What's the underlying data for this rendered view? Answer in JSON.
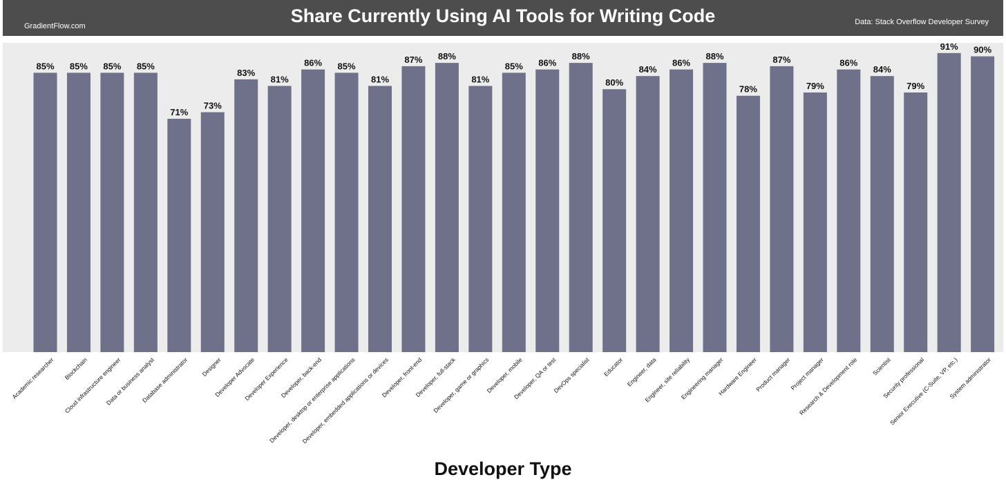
{
  "header": {
    "title": "Share Currently Using AI Tools for Writing Code",
    "brand": "GradientFlow.com",
    "source": "Data: Stack Overflow Developer Survey"
  },
  "colors": {
    "header_bg": "#4d4d4d",
    "plot_bg": "#ececec",
    "bar": "#6e7189"
  },
  "chart_data": {
    "type": "bar",
    "title": "Share Currently Using AI Tools for Writing Code",
    "xlabel": "Developer Type",
    "ylabel": "",
    "ylim": [
      0,
      100
    ],
    "grid": false,
    "categories": [
      "Academic researcher",
      "Blockchain",
      "Cloud infrastructure engineer",
      "Data or business analyst",
      "Database administrator",
      "Designer",
      "Developer Advocate",
      "Developer Experience",
      "Developer, back-end",
      "Developer, desktop or enterprise applications",
      "Developer, embedded applications or devices",
      "Developer, front-end",
      "Developer, full-stack",
      "Developer, game or graphics",
      "Developer, mobile",
      "Developer, QA or test",
      "DevOps specialist",
      "Educator",
      "Engineer, data",
      "Engineer, site reliability",
      "Engineering manager",
      "Hardware Engineer",
      "Product manager",
      "Project manager",
      "Research & Development role",
      "Scientist",
      "Security professional",
      "Senior Executive (C-Suite, VP, etc.)",
      "System administrator"
    ],
    "values": [
      85,
      85,
      85,
      85,
      71,
      73,
      83,
      81,
      86,
      85,
      81,
      87,
      88,
      81,
      85,
      86,
      88,
      80,
      84,
      86,
      88,
      78,
      87,
      79,
      86,
      84,
      79,
      91,
      90
    ],
    "labels": [
      "85%",
      "85%",
      "85%",
      "85%",
      "71%",
      "73%",
      "83%",
      "81%",
      "86%",
      "85%",
      "81%",
      "87%",
      "88%",
      "81%",
      "85%",
      "86%",
      "88%",
      "80%",
      "84%",
      "86%",
      "88%",
      "78%",
      "87%",
      "79%",
      "86%",
      "84%",
      "79%",
      "91%",
      "90%"
    ]
  }
}
